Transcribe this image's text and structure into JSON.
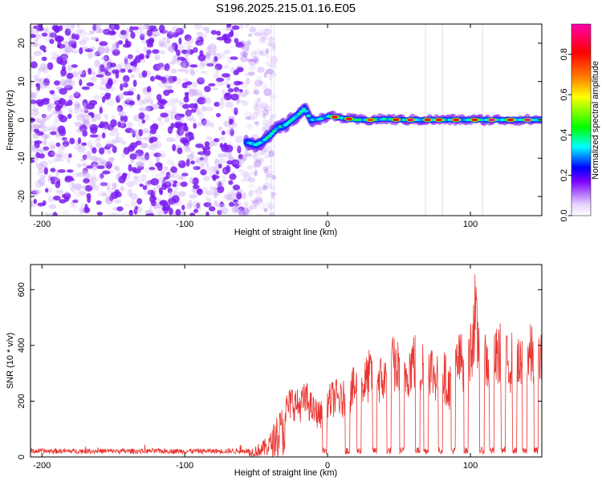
{
  "figure_title": "S196.2025.215.01.16.E05",
  "colors": {
    "snr_line": "#e8332e",
    "scatter_purple": "#7a1cf0",
    "colormap": [
      "#ffffff",
      "#e6d0ff",
      "#7b00ff",
      "#0000ff",
      "#00ffff",
      "#00ff00",
      "#ffff00",
      "#ff8000",
      "#ff0000",
      "#ff00aa"
    ]
  },
  "chart_data": [
    {
      "type": "heatmap",
      "title": "",
      "xlabel": "Height of straight line (km)",
      "ylabel": "Frequency (Hz)",
      "xlim": [
        -208,
        150
      ],
      "ylim": [
        -25,
        25
      ],
      "x_ticks": [
        {
          "value": -200,
          "label": "-200"
        },
        {
          "value": -100,
          "label": "-100"
        },
        {
          "value": 0,
          "label": "0"
        },
        {
          "value": 100,
          "label": "100"
        }
      ],
      "y_ticks": [
        {
          "value": 20,
          "label": "20"
        },
        {
          "value": 10,
          "label": "10"
        },
        {
          "value": 0,
          "label": "0"
        },
        {
          "value": -10,
          "label": "-10"
        },
        {
          "value": -20,
          "label": "-20"
        }
      ],
      "colorbar": {
        "label": "Normalized spectral amplitude",
        "range": [
          0,
          0.95
        ],
        "ticks": [
          {
            "value": 0.0,
            "label": "0.0"
          },
          {
            "value": 0.2,
            "label": "0.2"
          },
          {
            "value": 0.4,
            "label": "0.4"
          },
          {
            "value": 0.6,
            "label": "0.6"
          },
          {
            "value": 0.8,
            "label": "0.8"
          }
        ]
      },
      "noise_region_x": [
        -208,
        -45
      ],
      "signal_track": [
        {
          "x": -55,
          "y": -6
        },
        {
          "x": -50,
          "y": -6.5
        },
        {
          "x": -45,
          "y": -5.5
        },
        {
          "x": -40,
          "y": -4
        },
        {
          "x": -35,
          "y": -2
        },
        {
          "x": -30,
          "y": -1.5
        },
        {
          "x": -25,
          "y": 0
        },
        {
          "x": -20,
          "y": 1.5
        },
        {
          "x": -16,
          "y": 3
        },
        {
          "x": -12,
          "y": 0
        },
        {
          "x": -5,
          "y": 0.2
        },
        {
          "x": 0,
          "y": 1
        },
        {
          "x": 10,
          "y": 0.5
        },
        {
          "x": 20,
          "y": 0
        },
        {
          "x": 30,
          "y": 0
        },
        {
          "x": 40,
          "y": 0.2
        },
        {
          "x": 50,
          "y": 0
        },
        {
          "x": 60,
          "y": 0
        },
        {
          "x": 70,
          "y": 0
        },
        {
          "x": 80,
          "y": 0
        },
        {
          "x": 90,
          "y": 0
        },
        {
          "x": 100,
          "y": 0
        },
        {
          "x": 110,
          "y": 0
        },
        {
          "x": 120,
          "y": 0
        },
        {
          "x": 130,
          "y": 0
        },
        {
          "x": 140,
          "y": 0
        },
        {
          "x": 150,
          "y": 0
        }
      ],
      "hot_spots": [
        {
          "x": 5,
          "amp": 0.85
        },
        {
          "x": 15,
          "amp": 0.8
        },
        {
          "x": 30,
          "amp": 0.75
        },
        {
          "x": 48,
          "amp": 0.8
        },
        {
          "x": 58,
          "amp": 0.9
        },
        {
          "x": 70,
          "amp": 0.85
        },
        {
          "x": 78,
          "amp": 0.8
        },
        {
          "x": 90,
          "amp": 0.85
        },
        {
          "x": 103,
          "amp": 0.8
        },
        {
          "x": 115,
          "amp": 0.95
        },
        {
          "x": 128,
          "amp": 0.8
        },
        {
          "x": 140,
          "amp": 0.95
        }
      ]
    },
    {
      "type": "line",
      "title": "",
      "xlabel": "Height of straight line (km)",
      "ylabel": "SNR (10 * v/v)",
      "xlim": [
        -208,
        150
      ],
      "ylim": [
        0,
        690
      ],
      "x_ticks": [
        {
          "value": -200,
          "label": "-200"
        },
        {
          "value": -100,
          "label": "-100"
        },
        {
          "value": 0,
          "label": "0"
        },
        {
          "value": 100,
          "label": "100"
        }
      ],
      "y_ticks": [
        {
          "value": 0,
          "label": "0"
        },
        {
          "value": 200,
          "label": "200"
        },
        {
          "value": 400,
          "label": "400"
        },
        {
          "value": 600,
          "label": "600"
        }
      ],
      "series": [
        {
          "x": [
            -208,
            -190,
            -170,
            -150,
            -130,
            -110,
            -90,
            -70,
            -55,
            -45,
            -40,
            -35,
            -30,
            -25,
            -20,
            -15,
            -10,
            -5,
            0,
            5,
            10,
            15,
            20,
            25,
            30,
            35,
            40,
            45,
            50,
            55,
            60,
            65,
            70,
            75,
            80,
            85,
            90,
            95,
            100,
            103,
            105,
            110,
            115,
            120,
            125,
            130,
            135,
            140,
            145,
            150
          ],
          "y": [
            18,
            20,
            22,
            20,
            21,
            22,
            24,
            25,
            30,
            60,
            90,
            160,
            200,
            240,
            220,
            250,
            200,
            180,
            230,
            260,
            240,
            280,
            300,
            310,
            360,
            340,
            330,
            400,
            380,
            360,
            420,
            380,
            420,
            350,
            380,
            300,
            400,
            420,
            450,
            620,
            500,
            430,
            380,
            450,
            400,
            420,
            380,
            440,
            430,
            420
          ],
          "dips": [
            -2,
            14,
            22,
            33,
            43,
            52,
            63,
            69,
            79,
            88,
            97,
            108,
            115,
            123,
            131,
            138,
            146
          ]
        }
      ]
    }
  ]
}
